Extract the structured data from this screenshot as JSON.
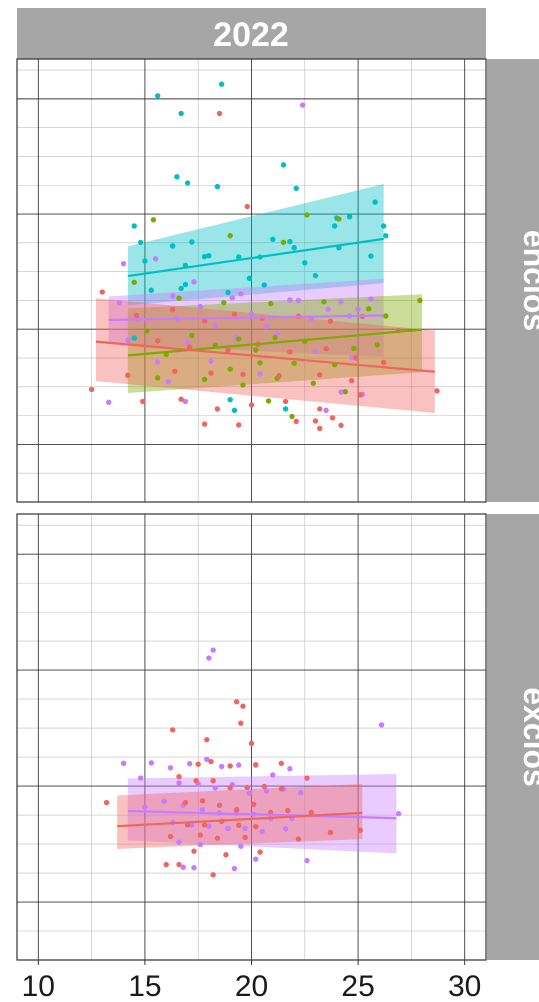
{
  "chart_data": {
    "type": "scatter",
    "title": "2022",
    "x_ticks": [
      10,
      15,
      20,
      25,
      30
    ],
    "xlim": [
      9,
      31
    ],
    "grid": true,
    "legend": "none",
    "colors": {
      "red": "#f0655e",
      "green": "#7caa00",
      "teal": "#00bfc4",
      "purple": "#c77cff",
      "strip": "#a6a6a6"
    },
    "panels": [
      {
        "label": "enclos",
        "ylim": [
          0,
          100
        ],
        "smooth": [
          {
            "color": "teal",
            "x": [
              14.2,
              26.2
            ],
            "y": [
              51.0,
              59.4
            ],
            "band": [
              [
                44.4,
                57.7
              ],
              [
                49.4,
                71.8
              ]
            ]
          },
          {
            "color": "purple",
            "x": [
              13.3,
              26.2
            ],
            "y": [
              41.1,
              42.1
            ],
            "band": [
              [
                35.7,
                46.4
              ],
              [
                32.7,
                50.4
              ]
            ]
          },
          {
            "color": "green",
            "x": [
              14.2,
              28.0
            ],
            "y": [
              33.1,
              38.9
            ],
            "band": [
              [
                24.6,
                43.7
              ],
              [
                29.3,
                46.9
              ]
            ]
          },
          {
            "color": "red",
            "x": [
              12.7,
              28.6
            ],
            "y": [
              36.2,
              29.4
            ],
            "band": [
              [
                27.3,
                46.0
              ],
              [
                20.1,
                38.7
              ]
            ]
          }
        ],
        "points": [
          {
            "color": "teal",
            "x": [
              18.6,
              15.6,
              16.7,
              21.5,
              16.5,
              17.0,
              18.4,
              22.1,
              25.8,
              24.0,
              23.9,
              24.6,
              26.3,
              14.5,
              14.8,
              16.3,
              17.2,
              18.0,
              19.4,
              20.4,
              21.0,
              22.0,
              22.5,
              24.1,
              25.6,
              26.2,
              16.9,
              17.8,
              19.9,
              21.8,
              23.0,
              15.3,
              16.7,
              18.9,
              20.6,
              14.5,
              16.9,
              19.2,
              21.6,
              19.0,
              15.0
            ],
            "y": [
              94.3,
              91.7,
              87.7,
              76.1,
              73.4,
              72.0,
              71.2,
              70.8,
              67.7,
              64.1,
              62.3,
              64.4,
              60.1,
              62.3,
              58.6,
              57.8,
              58.7,
              55.6,
              55.3,
              55.3,
              59.3,
              57.4,
              54.0,
              57.4,
              55.5,
              62.3,
              53.4,
              55.4,
              50.5,
              58.8,
              51.1,
              47.8,
              48.2,
              47.3,
              49.0,
              37.0,
              49.1,
              20.7,
              21.0,
              23.1,
              54.4
            ]
          },
          {
            "color": "purple",
            "x": [
              22.4,
              14.0,
              15.5,
              17.3,
              19.5,
              21.8,
              24.2,
              25.6,
              13.8,
              16.3,
              17.6,
              19.1,
              20.0,
              22.2,
              23.6,
              25.0,
              14.7,
              16.5,
              18.3,
              20.7,
              22.8,
              24.6,
              14.2,
              17.0,
              19.3,
              21.2,
              23.0,
              24.7,
              15.6,
              18.1,
              20.4,
              16.1,
              13.3,
              16.9,
              23.5,
              25.2,
              24.2
            ],
            "y": [
              89.6,
              53.8,
              54.9,
              49.7,
              47.0,
              45.6,
              45.2,
              45.8,
              45.0,
              46.5,
              44.1,
              46.1,
              42.5,
              45.5,
              43.5,
              43.5,
              41.3,
              41.4,
              39.9,
              39.6,
              41.3,
              42.0,
              36.5,
              36.1,
              37.2,
              38.0,
              34.0,
              32.6,
              31.6,
              31.8,
              28.9,
              27.1,
              22.5,
              22.7,
              20.7,
              24.3,
              24.8
            ]
          },
          {
            "color": "green",
            "x": [
              22.6,
              15.4,
              19.0,
              21.5,
              24.1,
              27.9,
              14.5,
              16.6,
              18.7,
              20.9,
              23.4,
              25.5,
              26.3,
              15.1,
              17.2,
              19.4,
              21.1,
              22.5,
              24.8,
              25.9,
              16.0,
              18.3,
              20.2,
              22.0,
              23.9,
              15.6,
              17.8,
              19.6,
              21.2,
              22.9,
              24.4,
              20.8,
              21.9,
              20.4,
              19.0
            ],
            "y": [
              64.8,
              63.7,
              60.1,
              58.6,
              63.9,
              45.5,
              49.6,
              46.0,
              45.0,
              44.8,
              45.2,
              43.6,
              42.0,
              38.6,
              37.6,
              36.8,
              37.1,
              36.3,
              34.7,
              35.5,
              33.3,
              35.4,
              34.3,
              31.3,
              31.0,
              28.0,
              27.7,
              26.4,
              27.9,
              26.8,
              24.9,
              22.8,
              19.3,
              31.4,
              30.0
            ]
          },
          {
            "color": "red",
            "x": [
              18.5,
              19.8,
              13.0,
              14.6,
              16.3,
              17.8,
              19.2,
              20.5,
              22.2,
              23.7,
              25.2,
              26.9,
              15.6,
              17.1,
              18.9,
              20.3,
              21.8,
              23.5,
              24.9,
              26.2,
              14.2,
              16.4,
              18.1,
              19.6,
              21.3,
              23.2,
              24.7,
              14.9,
              16.7,
              18.4,
              20.0,
              21.6,
              23.2,
              25.1,
              28.7,
              12.5,
              17.8,
              19.4,
              22.1,
              24.2,
              23.8,
              23.0,
              23.2
            ],
            "y": [
              87.7,
              66.7,
              47.4,
              42.1,
              43.4,
              40.9,
              42.4,
              41.5,
              41.9,
              40.8,
              41.9,
              38.7,
              36.4,
              35.0,
              34.3,
              35.6,
              33.9,
              34.6,
              32.5,
              31.5,
              28.6,
              29.5,
              29.1,
              28.8,
              28.5,
              28.7,
              27.4,
              22.7,
              23.2,
              21.0,
              21.9,
              22.7,
              21.0,
              24.2,
              25.1,
              25.4,
              17.6,
              17.4,
              18.2,
              17.3,
              19.0,
              18.3,
              16.6
            ]
          }
        ]
      },
      {
        "label": "exclos",
        "ylim": [
          0,
          100
        ],
        "smooth": [
          {
            "color": "purple",
            "x": [
              14.2,
              26.8
            ],
            "y": [
              33.4,
              31.8
            ],
            "band": [
              [
                26.8,
                40.7
              ],
              [
                23.9,
                41.7
              ]
            ]
          },
          {
            "color": "red",
            "x": [
              13.7,
              25.2
            ],
            "y": [
              30.0,
              33.0
            ],
            "band": [
              [
                24.9,
                36.9
              ],
              [
                27.1,
                39.5
              ]
            ]
          }
        ],
        "points": [
          {
            "color": "purple",
            "x": [
              18.2,
              18.0,
              26.1,
              14.0,
              15.3,
              16.2,
              17.1,
              17.9,
              18.6,
              19.4,
              20.2,
              21.0,
              21.8,
              14.8,
              16.6,
              17.5,
              18.3,
              19.1,
              19.9,
              20.7,
              21.5,
              22.3,
              26.9,
              15.0,
              15.9,
              16.8,
              17.7,
              18.5,
              19.3,
              20.1,
              20.9,
              21.9,
              16.3,
              17.2,
              18.0,
              18.9,
              19.7,
              20.5,
              21.6,
              16.6,
              17.6,
              19.5,
              20.2,
              16.8,
              17.3,
              19.2,
              22.6
            ],
            "y": [
              69.5,
              67.7,
              52.7,
              44.1,
              44.2,
              43.1,
              44.0,
              45.0,
              43.4,
              43.7,
              43.7,
              41.5,
              42.9,
              40.8,
              39.7,
              39.5,
              38.6,
              39.3,
              37.4,
              37.9,
              38.3,
              37.5,
              32.8,
              34.3,
              35.6,
              34.7,
              33.7,
              33.0,
              32.9,
              32.7,
              31.7,
              31.7,
              30.8,
              30.3,
              30.0,
              29.5,
              29.5,
              28.8,
              29.4,
              26.4,
              25.9,
              25.5,
              22.6,
              20.8,
              20.7,
              20.5,
              22.3
            ]
          },
          {
            "color": "red",
            "x": [
              19.3,
              19.6,
              19.5,
              16.3,
              17.9,
              20.0,
              17.5,
              18.1,
              19.0,
              20.2,
              21.4,
              22.6,
              16.6,
              17.4,
              18.2,
              19.0,
              19.8,
              20.6,
              21.4,
              13.2,
              16.9,
              17.7,
              18.5,
              19.3,
              20.1,
              20.9,
              21.7,
              22.8,
              17.0,
              17.8,
              18.6,
              19.4,
              20.2,
              16.2,
              17.6,
              18.4,
              19.7,
              22.2,
              17.3,
              18.8,
              20.4,
              16.0,
              16.6,
              18.2,
              23.7,
              25.1
            ],
            "y": [
              57.9,
              56.9,
              53.1,
              51.6,
              49.4,
              48.6,
              43.9,
              44.5,
              43.5,
              43.8,
              44.1,
              40.8,
              41.1,
              40.2,
              40.2,
              38.6,
              38.7,
              38.9,
              38.4,
              35.3,
              35.3,
              35.7,
              34.7,
              33.7,
              34.9,
              33.1,
              33.5,
              33.1,
              30.3,
              30.3,
              31.1,
              30.2,
              29.9,
              27.7,
              28.0,
              27.3,
              27.5,
              27.1,
              24.4,
              23.6,
              24.2,
              21.4,
              21.4,
              19.1,
              28.6,
              29.1
            ]
          }
        ]
      }
    ]
  }
}
